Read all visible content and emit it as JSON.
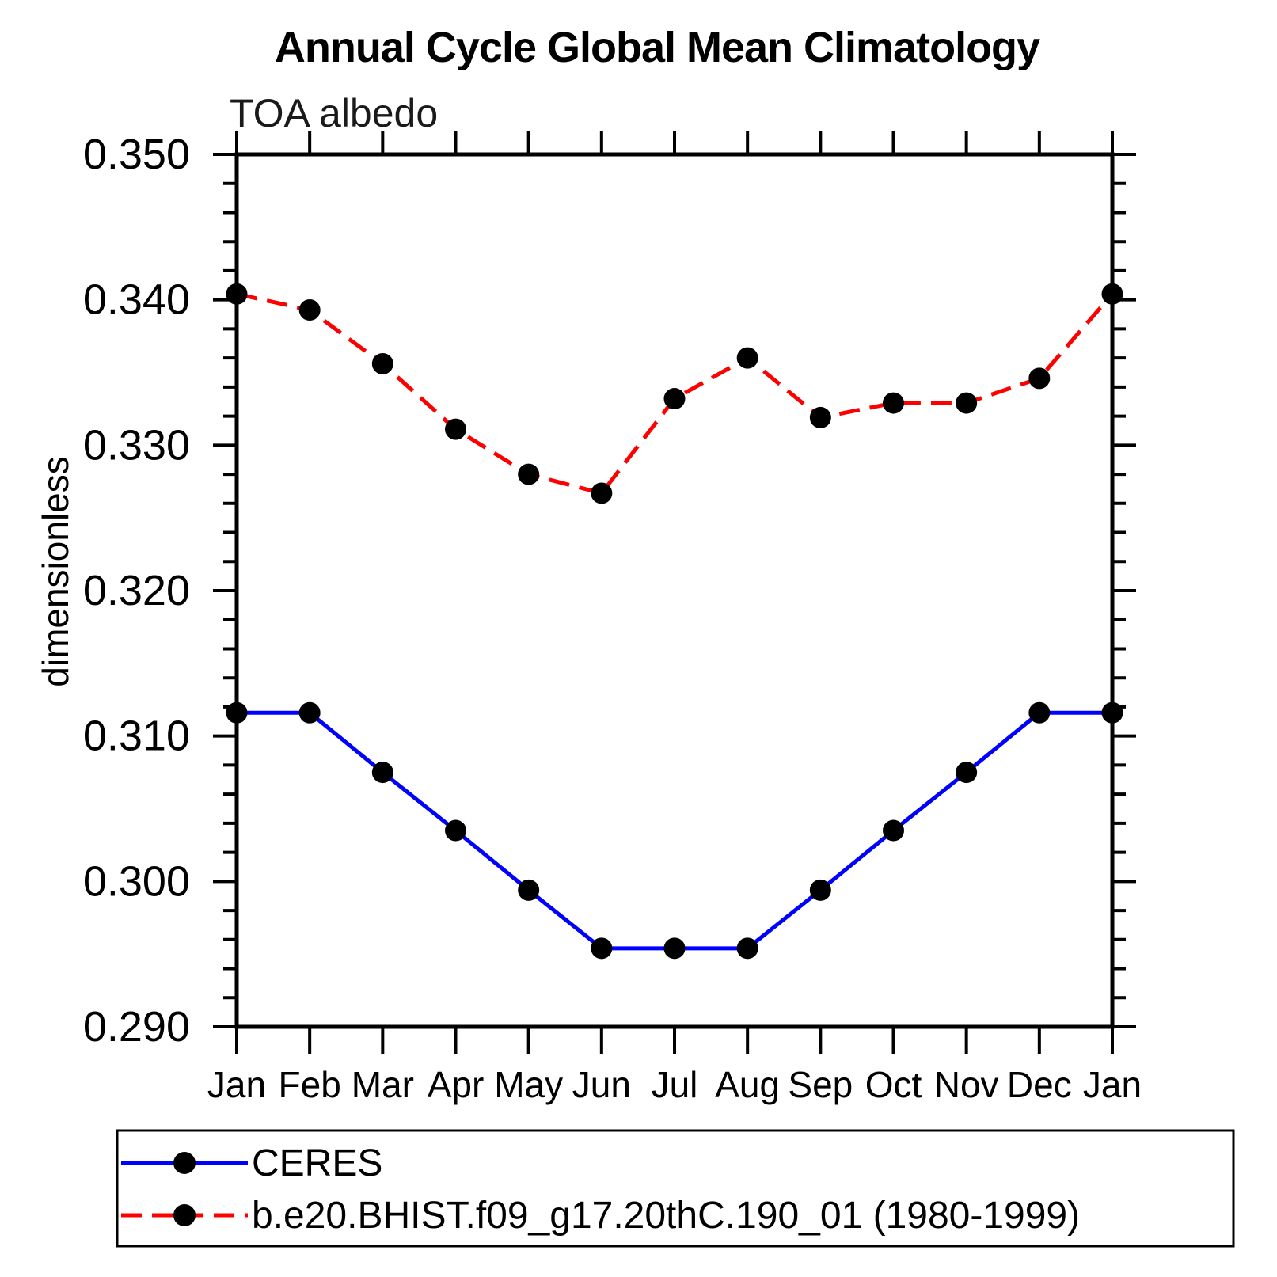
{
  "header": {
    "title": "Annual Cycle Global Mean Climatology",
    "subtitle": "TOA albedo"
  },
  "axes": {
    "y_label": "dimensionless",
    "y_tick_labels": [
      "0.350",
      "0.340",
      "0.330",
      "0.320",
      "0.310",
      "0.300",
      "0.290"
    ],
    "x_tick_labels": [
      "Jan",
      "Feb",
      "Mar",
      "Apr",
      "May",
      "Jun",
      "Jul",
      "Aug",
      "Sep",
      "Oct",
      "Nov",
      "Dec",
      "Jan"
    ]
  },
  "legend": {
    "entries": [
      "CERES",
      "b.e20.BHIST.f09_g17.20thC.190_01 (1980-1999)"
    ]
  },
  "chart_data": {
    "type": "line",
    "title": "Annual Cycle Global Mean Climatology",
    "subtitle": "TOA albedo",
    "xlabel": "",
    "ylabel": "dimensionless",
    "x_categories": [
      "Jan",
      "Feb",
      "Mar",
      "Apr",
      "May",
      "Jun",
      "Jul",
      "Aug",
      "Sep",
      "Oct",
      "Nov",
      "Dec",
      "Jan"
    ],
    "ylim": [
      0.29,
      0.35
    ],
    "y_major_step": 0.01,
    "y_minor_step": 0.002,
    "grid": false,
    "legend_position": "bottom-left-box",
    "marker": {
      "shape": "circle",
      "color": "#000000"
    },
    "series": [
      {
        "name": "CERES",
        "color": "#0000ff",
        "line_style": "solid",
        "values": [
          0.3116,
          0.3116,
          0.3075,
          0.3035,
          0.2994,
          0.2954,
          0.2954,
          0.2954,
          0.2994,
          0.3035,
          0.3075,
          0.3116,
          0.3116
        ]
      },
      {
        "name": "b.e20.BHIST.f09_g17.20thC.190_01 (1980-1999)",
        "color": "#ff0000",
        "line_style": "dashed",
        "values": [
          0.3404,
          0.3393,
          0.3356,
          0.3311,
          0.328,
          0.3267,
          0.3332,
          0.336,
          0.3319,
          0.3329,
          0.3329,
          0.3346,
          0.3404
        ]
      }
    ]
  }
}
